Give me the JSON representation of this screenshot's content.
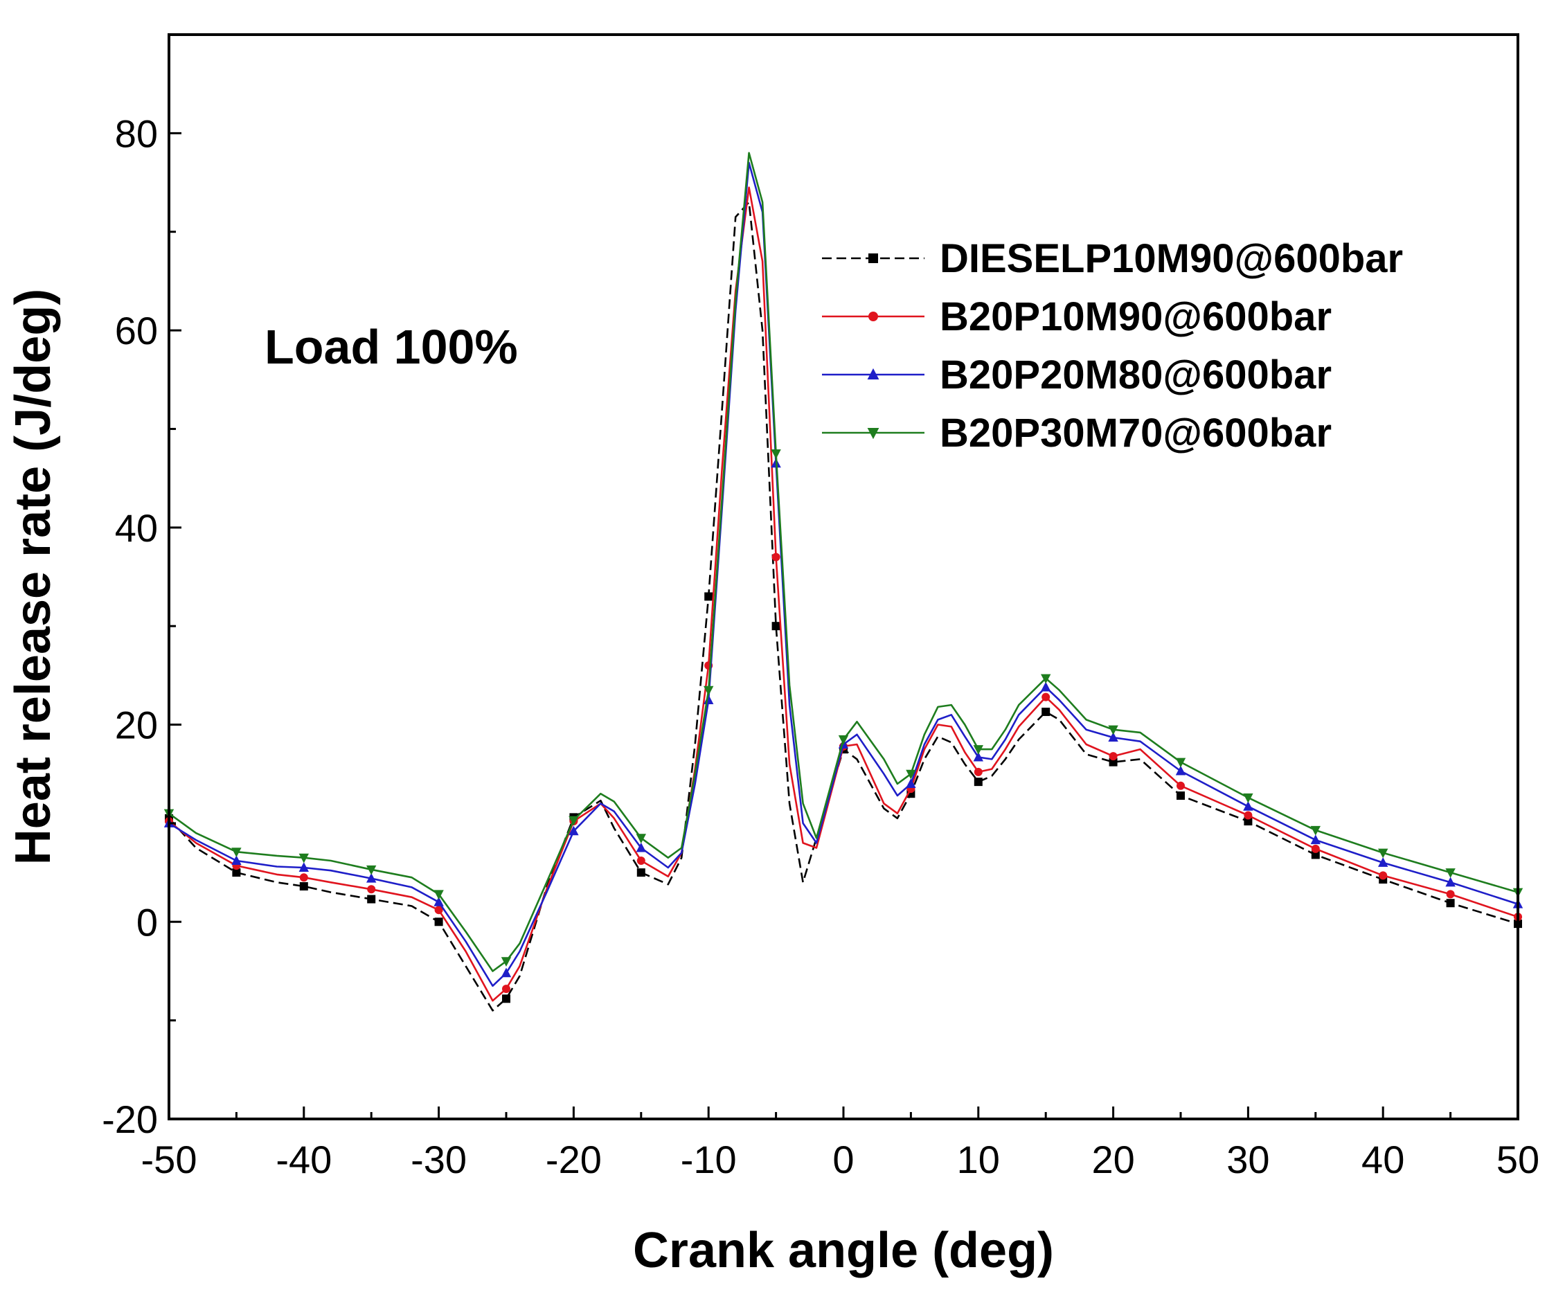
{
  "chart_data": {
    "type": "line",
    "xlabel": "Crank angle (deg)",
    "ylabel": "Heat release rate (J/deg)",
    "xlim": [
      -50,
      50
    ],
    "ylim": [
      -20,
      90
    ],
    "xticks": [
      -50,
      -40,
      -30,
      -20,
      -10,
      0,
      10,
      20,
      30,
      40,
      50
    ],
    "yticks": [
      -20,
      0,
      20,
      40,
      60,
      80
    ],
    "grid": false,
    "legend_position": "top-right",
    "annotation": "Load 100%",
    "colors": {
      "axis": "#000000",
      "series": [
        "#000000",
        "#e0141e",
        "#1e1ec8",
        "#1e7d1e"
      ]
    },
    "marker_x": [
      -50,
      -45,
      -40,
      -35,
      -30,
      -25,
      -20,
      -15,
      -10,
      -5,
      0,
      5,
      10,
      15,
      20,
      25,
      30,
      35,
      40,
      45,
      50
    ],
    "x": [
      -50,
      -48,
      -45,
      -42,
      -40,
      -38,
      -35,
      -32,
      -30,
      -28,
      -26,
      -25,
      -24,
      -22,
      -20,
      -18,
      -17,
      -15,
      -13,
      -12,
      -11,
      -10,
      -9,
      -8,
      -7,
      -6,
      -5,
      -4,
      -3,
      -2,
      0,
      1,
      3,
      4,
      5,
      6,
      7,
      8,
      9,
      10,
      11,
      12,
      13,
      15,
      16,
      18,
      20,
      22,
      25,
      30,
      35,
      40,
      45,
      50
    ],
    "series": [
      {
        "name": "DIESELP10M90@600bar",
        "marker": "square",
        "values": [
          10.5,
          7.5,
          5.0,
          4.0,
          3.6,
          3.0,
          2.3,
          1.6,
          0.0,
          -4.5,
          -9.0,
          -7.8,
          -5.5,
          3.5,
          10.6,
          12.3,
          9.5,
          5.0,
          3.8,
          6.5,
          18.0,
          33.0,
          52.0,
          71.5,
          73.0,
          60.0,
          30.0,
          12.0,
          4.0,
          8.5,
          17.5,
          16.5,
          11.5,
          10.5,
          13.0,
          16.5,
          18.8,
          18.2,
          16.0,
          14.2,
          14.8,
          16.5,
          18.5,
          21.3,
          20.5,
          17.0,
          16.2,
          16.5,
          12.8,
          10.2,
          6.8,
          4.3,
          1.9,
          -0.2
        ]
      },
      {
        "name": "B20P10M90@600bar",
        "marker": "circle",
        "values": [
          10.2,
          8.0,
          5.7,
          4.8,
          4.5,
          4.0,
          3.3,
          2.5,
          1.2,
          -3.0,
          -8.0,
          -6.8,
          -4.5,
          3.3,
          10.2,
          12.0,
          10.5,
          6.2,
          4.6,
          7.0,
          15.5,
          26.0,
          46.0,
          64.0,
          74.5,
          67.0,
          37.0,
          16.0,
          8.0,
          7.5,
          17.8,
          18.0,
          12.0,
          11.0,
          13.5,
          17.5,
          20.0,
          19.8,
          17.2,
          15.2,
          15.5,
          17.5,
          19.8,
          22.8,
          21.5,
          18.0,
          16.8,
          17.5,
          13.8,
          10.8,
          7.4,
          4.7,
          2.8,
          0.5
        ]
      },
      {
        "name": "B20P20M80@600bar",
        "marker": "triangle-up",
        "values": [
          10.0,
          8.3,
          6.2,
          5.6,
          5.5,
          5.2,
          4.4,
          3.5,
          2.0,
          -2.0,
          -6.5,
          -5.2,
          -3.0,
          3.0,
          9.2,
          12.0,
          11.2,
          7.5,
          5.5,
          7.0,
          14.0,
          22.5,
          42.0,
          62.0,
          77.0,
          72.0,
          46.5,
          22.0,
          10.0,
          8.0,
          18.0,
          19.0,
          15.0,
          12.8,
          14.0,
          18.0,
          20.5,
          21.0,
          18.8,
          16.7,
          16.5,
          18.5,
          21.0,
          23.8,
          22.5,
          19.5,
          18.7,
          18.3,
          15.3,
          11.7,
          8.3,
          6.0,
          4.0,
          1.8
        ]
      },
      {
        "name": "B20P30M70@600bar",
        "marker": "triangle-down",
        "values": [
          11.0,
          9.0,
          7.1,
          6.7,
          6.5,
          6.2,
          5.3,
          4.5,
          2.8,
          -1.0,
          -5.0,
          -4.0,
          -2.2,
          4.0,
          10.3,
          13.0,
          12.2,
          8.5,
          6.5,
          7.5,
          15.0,
          23.5,
          43.0,
          63.0,
          78.0,
          73.0,
          47.5,
          24.0,
          12.0,
          8.5,
          18.5,
          20.3,
          16.5,
          14.0,
          15.0,
          19.0,
          21.8,
          22.0,
          20.0,
          17.5,
          17.5,
          19.5,
          22.0,
          24.7,
          23.5,
          20.5,
          19.5,
          19.2,
          16.2,
          12.6,
          9.3,
          7.0,
          5.0,
          3.0
        ]
      }
    ]
  }
}
